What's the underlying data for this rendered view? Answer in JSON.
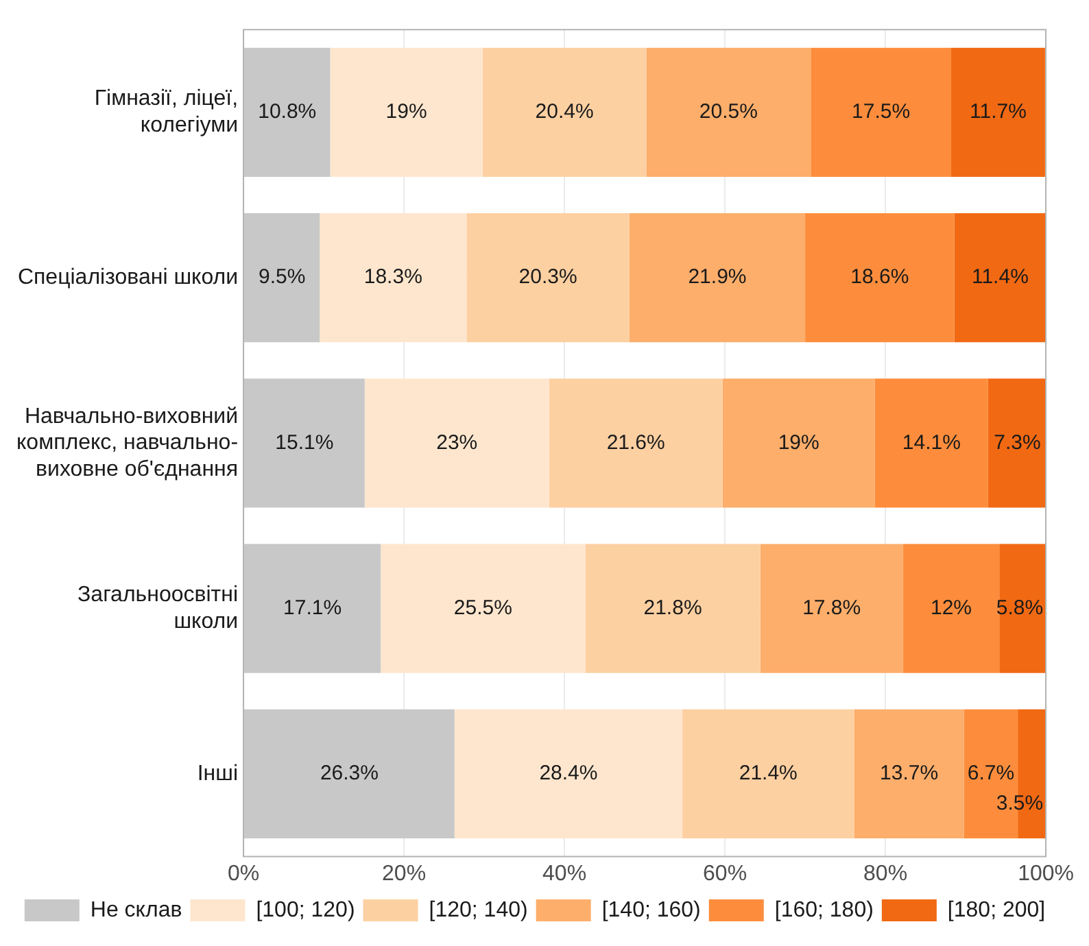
{
  "chart_data": {
    "type": "bar",
    "orientation": "horizontal",
    "stacked": true,
    "categories": [
      "Гімназії, ліцеї, колегіуми",
      "Спеціалізовані школи",
      "Навчально-виховний комплекс, навчально-виховне об'єднання",
      "Загальноосвітні школи",
      "Інші"
    ],
    "series": [
      {
        "name": "Не склав",
        "color": "#c8c8c8",
        "values": [
          10.8,
          9.5,
          15.1,
          17.1,
          26.3
        ],
        "value_labels": [
          "10.8%",
          "9.5%",
          "15.1%",
          "17.1%",
          "26.3%"
        ]
      },
      {
        "name": "[100; 120)",
        "color": "#fee6ce",
        "values": [
          19,
          18.3,
          23,
          25.5,
          28.4
        ],
        "value_labels": [
          "19%",
          "18.3%",
          "23%",
          "25.5%",
          "28.4%"
        ]
      },
      {
        "name": "[120; 140)",
        "color": "#fdd0a2",
        "values": [
          20.4,
          20.3,
          21.6,
          21.8,
          21.4
        ],
        "value_labels": [
          "20.4%",
          "20.3%",
          "21.6%",
          "21.8%",
          "21.4%"
        ]
      },
      {
        "name": "[140; 160)",
        "color": "#fdae6b",
        "values": [
          20.5,
          21.9,
          19,
          17.8,
          13.7
        ],
        "value_labels": [
          "20.5%",
          "21.9%",
          "19%",
          "17.8%",
          "13.7%"
        ]
      },
      {
        "name": "[160; 180)",
        "color": "#fd8d3c",
        "values": [
          17.5,
          18.6,
          14.1,
          12,
          6.7
        ],
        "value_labels": [
          "17.5%",
          "18.6%",
          "14.1%",
          "12%",
          "6.7%"
        ]
      },
      {
        "name": "[180; 200]",
        "color": "#f16913",
        "values": [
          11.7,
          11.4,
          7.3,
          5.8,
          3.5
        ],
        "value_labels": [
          "11.7%",
          "11.4%",
          "7.3%",
          "5.8%",
          "3.5%"
        ]
      }
    ],
    "xlim": [
      0,
      100
    ],
    "xticks": [
      {
        "value": 0,
        "label": "0%"
      },
      {
        "value": 20,
        "label": "20%"
      },
      {
        "value": 40,
        "label": "40%"
      },
      {
        "value": 60,
        "label": "60%"
      },
      {
        "value": 80,
        "label": "80%"
      },
      {
        "value": 100,
        "label": "100%"
      }
    ],
    "grid": true,
    "legend": "bottom"
  }
}
